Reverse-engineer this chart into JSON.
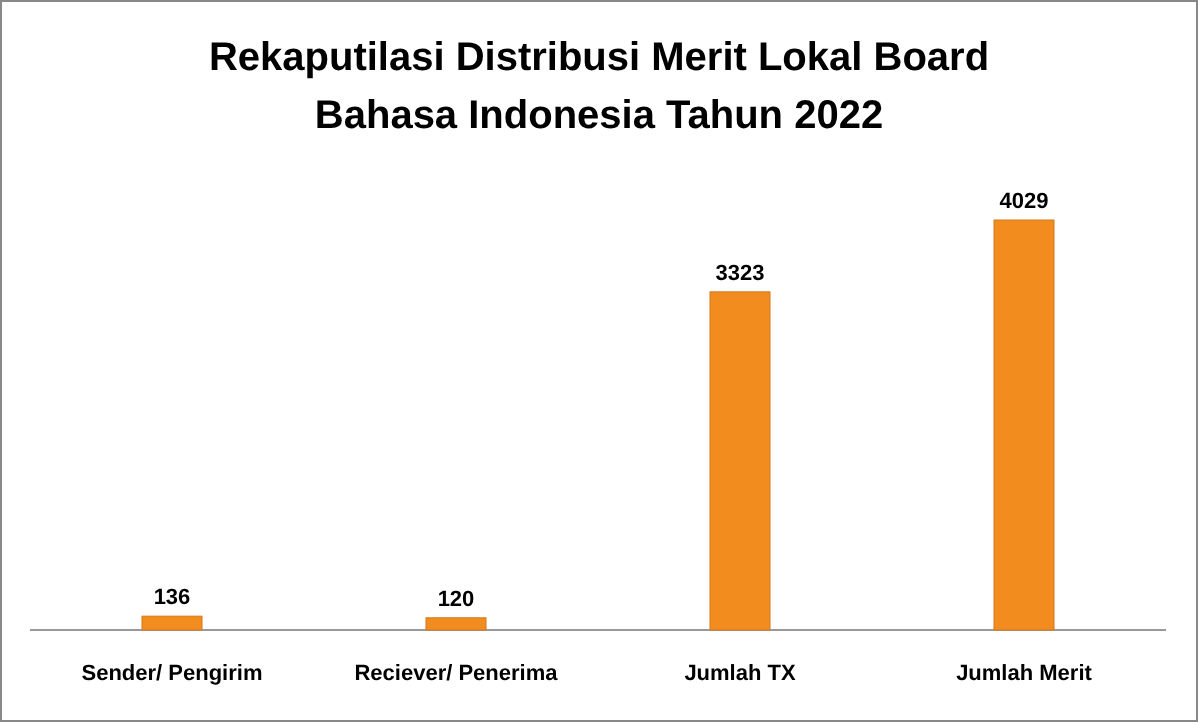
{
  "chart_data": {
    "type": "bar",
    "title": "Rekaputilasi Distribusi Merit Lokal Board Bahasa Indonesia Tahun 2022",
    "categories": [
      "Sender/ Pengirim",
      "Reciever/ Penerima",
      "Jumlah TX",
      "Jumlah Merit"
    ],
    "values": [
      136,
      120,
      3323,
      4029
    ],
    "color": "#f28c1e",
    "data_labels": true
  }
}
